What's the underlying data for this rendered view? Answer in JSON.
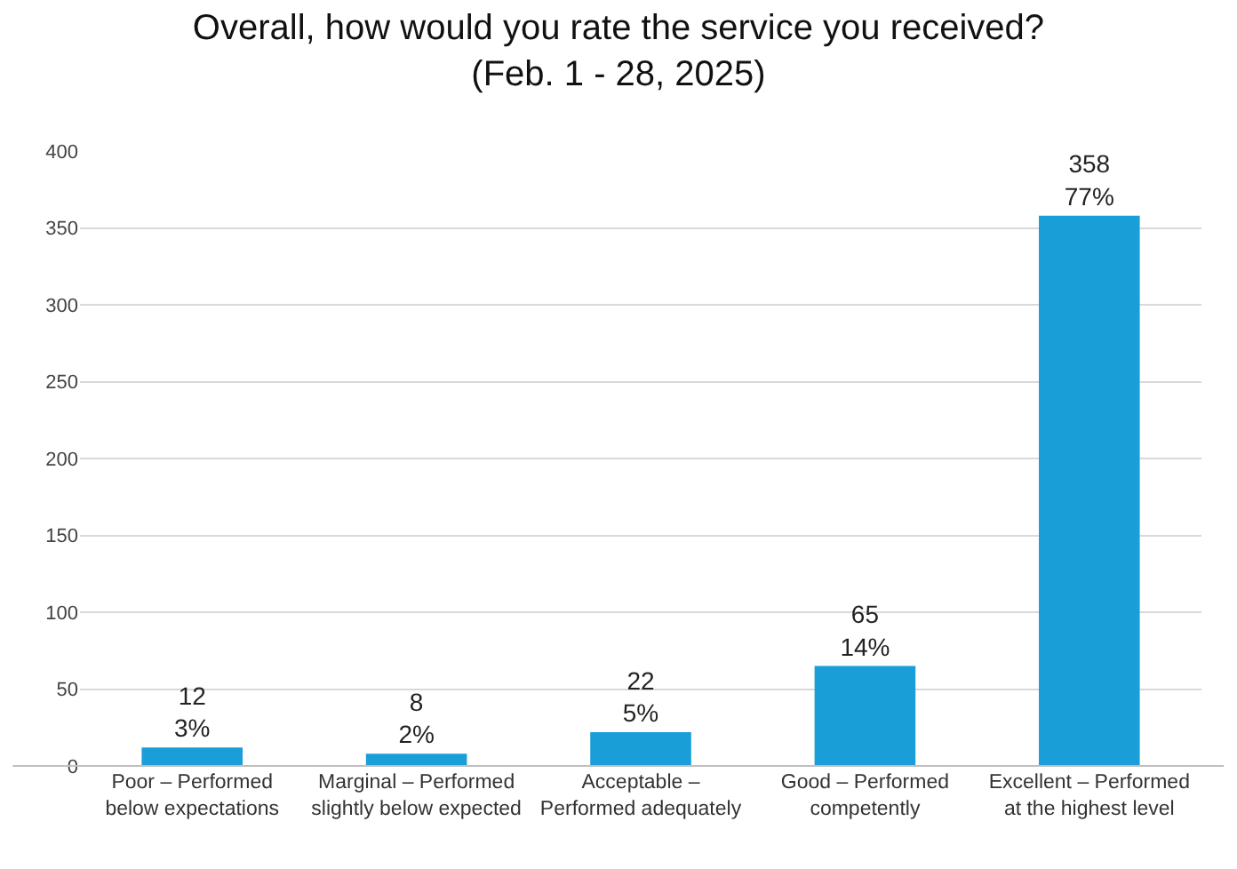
{
  "chart_data": {
    "type": "bar",
    "title": "Overall, how would you rate the service you received?",
    "subtitle": "(Feb. 1 - 28, 2025)",
    "categories": [
      "Poor – Performed below expectations",
      "Marginal – Performed slightly below expected",
      "Acceptable – Performed adequately",
      "Good – Performed competently",
      "Excellent – Performed at the highest level"
    ],
    "values": [
      12,
      8,
      22,
      65,
      358
    ],
    "value_labels": [
      "12\n3%",
      "8\n2%",
      "22\n5%",
      "65\n14%",
      "358\n77%"
    ],
    "color": "#1a9ed8",
    "ylim": [
      0,
      400
    ],
    "yticks": [
      0,
      50,
      100,
      150,
      200,
      250,
      300,
      350,
      400
    ],
    "grid": "y"
  }
}
